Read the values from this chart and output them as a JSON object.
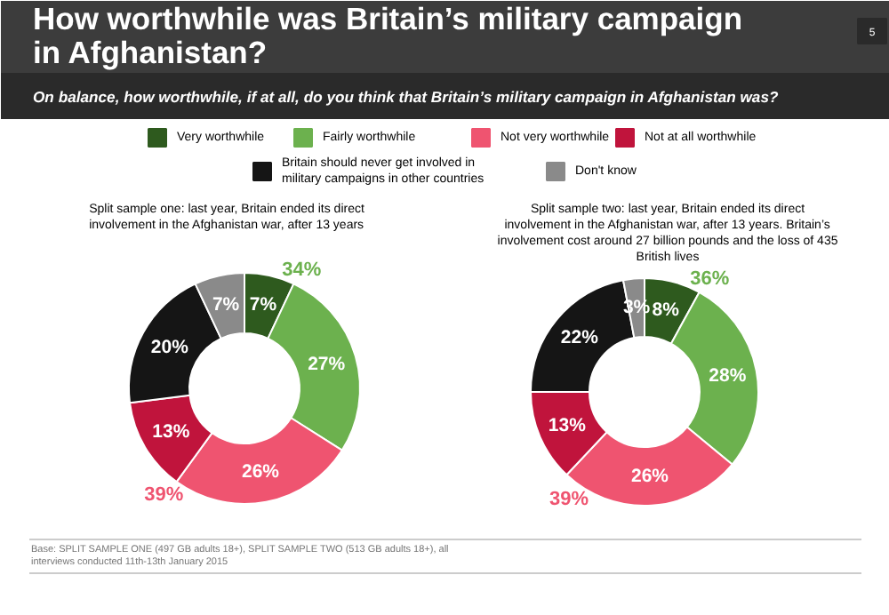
{
  "chart_data": [
    {
      "type": "donut",
      "title": "How worthwhile was Britain’s military campaign in Afghanistan?",
      "subtitle": "On balance, how worthwhile, if at all, do you think that Britain’s military campaign in Afghanistan was?",
      "xlabel": "Split sample one: last year, Britain ended its direct involvement in the Afghanistan war, after 13 years",
      "categories": [
        "Very worthwhile",
        "Fairly worthwhile",
        "Not very worthwhile",
        "Not at all worthwhile",
        "Britain should never get involved in military campaigns in other countries",
        "Don't know"
      ],
      "values": [
        7,
        27,
        26,
        13,
        20,
        7
      ],
      "value_labels": [
        "7%",
        "27%",
        "26%",
        "13%",
        "20%",
        "7%"
      ],
      "colors": [
        "#2e5a1e",
        "#6cb14e",
        "#ef5470",
        "#c0143c",
        "#151515",
        "#8a8a8a"
      ],
      "legend": "top",
      "annotations": [
        "34%",
        "39%",
        "5",
        "Base: SPLIT SAMPLE ONE (497 GB adults 18+), SPLIT SAMPLE TWO (513 GB adults 18+), all interviews conducted 11th-13th January 2015"
      ]
    },
    {
      "type": "donut",
      "xlabel": "Split sample two: last year, Britain ended its direct involvement in the Afghanistan war, after 13 years. Britain’s involvement cost around 27 billion pounds and the loss of 435 British lives",
      "values": [
        8,
        28,
        26,
        13,
        22,
        3
      ],
      "value_labels": [
        "8%",
        "28%",
        "26%",
        "13%",
        "22%",
        "3%"
      ],
      "colors": [
        "#2e5a1e",
        "#6cb14e",
        "#ef5470",
        "#c0143c",
        "#151515",
        "#8a8a8a"
      ],
      "annotations": [
        "36%",
        "39%"
      ]
    }
  ]
}
